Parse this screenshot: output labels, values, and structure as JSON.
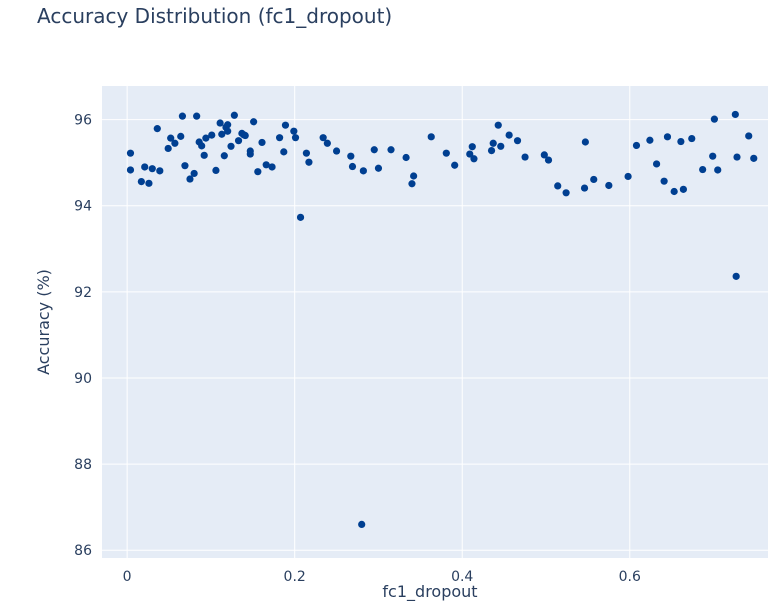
{
  "chart_data": {
    "type": "scatter",
    "title": "Accuracy Distribution (fc1_dropout)",
    "xlabel": "fc1_dropout",
    "ylabel": "Accuracy (%)",
    "xlim": [
      -0.03,
      0.765
    ],
    "ylim": [
      85.82,
      96.78
    ],
    "x_ticks": [
      0,
      0.2,
      0.4,
      0.6
    ],
    "x_tick_labels": [
      "0",
      "0.2",
      "0.4",
      "0.6"
    ],
    "y_ticks": [
      86,
      88,
      90,
      92,
      94,
      96
    ],
    "y_tick_labels": [
      "86",
      "88",
      "90",
      "92",
      "94",
      "96"
    ],
    "grid": true,
    "legend": "none",
    "colors": {
      "plot_bg": "#e5ecf6",
      "marker": "#003f91",
      "grid": "#ffffff",
      "text": "#2a3f5f"
    },
    "series": [
      {
        "x": [
          0.004,
          0.004,
          0.017,
          0.021,
          0.026,
          0.03,
          0.036,
          0.039,
          0.049,
          0.052,
          0.057,
          0.064,
          0.066,
          0.069,
          0.075,
          0.08,
          0.083,
          0.086,
          0.089,
          0.092,
          0.094,
          0.101,
          0.106,
          0.111,
          0.113,
          0.116,
          0.118,
          0.12,
          0.12,
          0.124,
          0.128,
          0.133,
          0.137,
          0.139,
          0.141,
          0.147,
          0.147,
          0.151,
          0.156,
          0.161,
          0.166,
          0.173,
          0.182,
          0.187,
          0.189,
          0.199,
          0.201,
          0.207,
          0.214,
          0.217,
          0.234,
          0.239,
          0.25,
          0.267,
          0.269,
          0.282,
          0.28,
          0.295,
          0.3,
          0.315,
          0.333,
          0.34,
          0.342,
          0.363,
          0.381,
          0.391,
          0.409,
          0.412,
          0.414,
          0.435,
          0.437,
          0.443,
          0.446,
          0.456,
          0.466,
          0.475,
          0.498,
          0.503,
          0.514,
          0.524,
          0.546,
          0.547,
          0.557,
          0.575,
          0.598,
          0.608,
          0.624,
          0.632,
          0.641,
          0.645,
          0.653,
          0.661,
          0.664,
          0.674,
          0.687,
          0.699,
          0.701,
          0.705,
          0.726,
          0.727,
          0.728,
          0.742,
          0.748
        ],
        "y": [
          95.22,
          94.83,
          94.56,
          94.9,
          94.52,
          94.86,
          95.79,
          94.81,
          95.33,
          95.57,
          95.45,
          95.61,
          96.08,
          94.93,
          94.62,
          94.75,
          96.08,
          95.48,
          95.39,
          95.17,
          95.57,
          95.64,
          94.82,
          95.92,
          95.66,
          95.16,
          95.82,
          95.88,
          95.73,
          95.38,
          96.1,
          95.51,
          95.68,
          95.65,
          95.63,
          95.27,
          95.2,
          95.95,
          94.79,
          95.47,
          94.95,
          94.9,
          95.58,
          95.25,
          95.87,
          95.73,
          95.58,
          93.73,
          95.22,
          95.01,
          95.58,
          95.45,
          95.27,
          95.15,
          94.91,
          94.81,
          86.6,
          95.3,
          94.87,
          95.3,
          95.12,
          94.51,
          94.69,
          95.6,
          95.22,
          94.94,
          95.2,
          95.37,
          95.09,
          95.28,
          95.45,
          95.87,
          95.38,
          95.64,
          95.51,
          95.13,
          95.18,
          95.06,
          94.46,
          94.3,
          94.41,
          95.48,
          94.61,
          94.47,
          94.68,
          95.4,
          95.52,
          94.97,
          94.57,
          95.6,
          94.33,
          95.49,
          94.38,
          95.56,
          94.84,
          95.15,
          96.01,
          94.83,
          96.12,
          92.36,
          95.13,
          95.62,
          95.1
        ]
      }
    ]
  }
}
